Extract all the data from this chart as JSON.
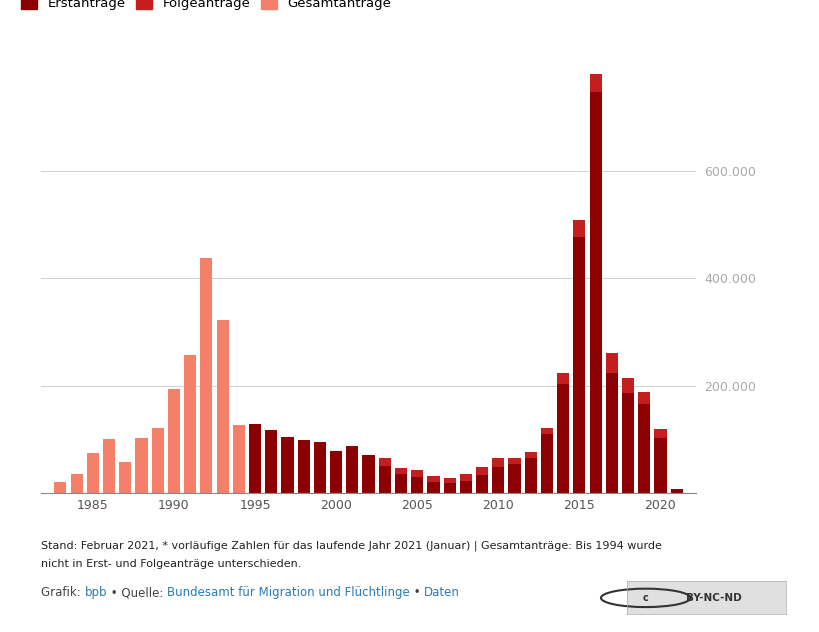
{
  "years": [
    1983,
    1984,
    1985,
    1986,
    1987,
    1988,
    1989,
    1990,
    1991,
    1992,
    1993,
    1994,
    1995,
    1996,
    1997,
    1998,
    1999,
    2000,
    2001,
    2002,
    2003,
    2004,
    2005,
    2006,
    2007,
    2008,
    2009,
    2010,
    2011,
    2012,
    2013,
    2014,
    2015,
    2016,
    2017,
    2018,
    2019,
    2020,
    2021
  ],
  "erstantraege": [
    0,
    0,
    0,
    0,
    0,
    0,
    0,
    0,
    0,
    0,
    0,
    0,
    127937,
    116367,
    104353,
    98644,
    95113,
    78564,
    88287,
    71127,
    50563,
    35607,
    28914,
    21029,
    19164,
    22085,
    33033,
    48589,
    53347,
    64539,
    109580,
    202834,
    476649,
    745545,
    222683,
    185853,
    165938,
    102581,
    8092
  ],
  "folgeantraege": [
    0,
    0,
    0,
    0,
    0,
    0,
    0,
    0,
    0,
    0,
    0,
    0,
    0,
    0,
    0,
    0,
    0,
    0,
    0,
    0,
    14388,
    10706,
    13360,
    9881,
    9217,
    13688,
    14743,
    16831,
    11245,
    12395,
    11798,
    19573,
    31382,
    34752,
    36935,
    28291,
    22098,
    17153,
    0
  ],
  "gesamtantraege": [
    19737,
    35278,
    73832,
    99650,
    57379,
    103076,
    121318,
    193063,
    256112,
    438191,
    322599,
    127210,
    0,
    0,
    0,
    0,
    0,
    0,
    0,
    0,
    0,
    0,
    0,
    0,
    0,
    0,
    0,
    0,
    0,
    0,
    0,
    0,
    0,
    0,
    0,
    0,
    0,
    0,
    0
  ],
  "color_erst": "#8B0000",
  "color_folge": "#C41E1E",
  "color_gesamt": "#F4806A",
  "bg_color": "#ffffff",
  "grid_color": "#d0d0d0",
  "ylim": [
    0,
    800000
  ],
  "yticks": [
    200000,
    400000,
    600000
  ],
  "xlabel_color": "#555555",
  "ylabel_color": "#aaaaaa",
  "legend_labels": [
    "Erstanträge",
    "Folgeanträge",
    "Gesamtanträge"
  ],
  "footer_text1": "Stand: Februar 2021, * vorläufige Zahlen für das laufende Jahr 2021 (Januar) | Gesamtanträge: Bis 1994 wurde",
  "footer_text2": "nicht in Erst- und Folgeanträge unterschieden.",
  "xtick_positions": [
    1985,
    1990,
    1995,
    2000,
    2005,
    2010,
    2015,
    2020
  ]
}
